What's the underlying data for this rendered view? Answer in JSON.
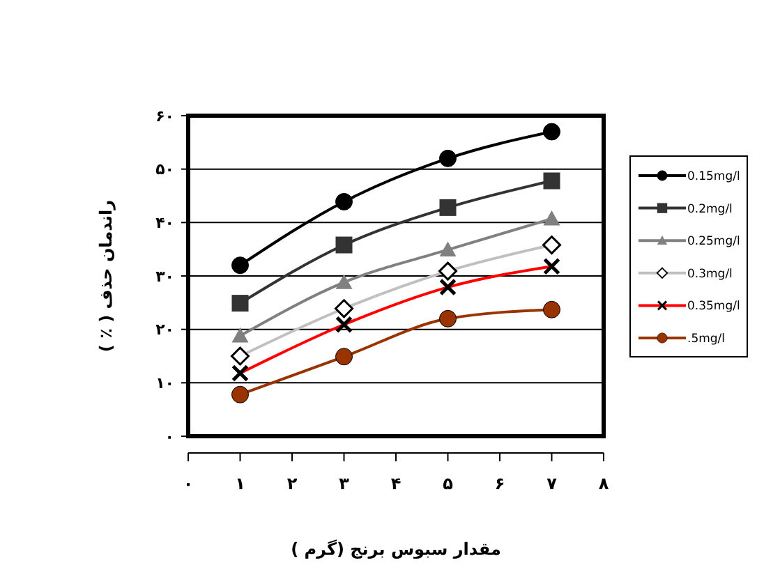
{
  "chart_data": {
    "type": "line",
    "xlabel": "مقدار سبوس برنج (گرم )",
    "ylabel": "راندمان حذف ( ٪ )",
    "x": [
      1,
      3,
      5,
      7
    ],
    "xlim": [
      0,
      8
    ],
    "xticks": [
      {
        "value": 0,
        "label": "۰"
      },
      {
        "value": 1,
        "label": "۱"
      },
      {
        "value": 2,
        "label": "۲"
      },
      {
        "value": 3,
        "label": "۳"
      },
      {
        "value": 4,
        "label": "۴"
      },
      {
        "value": 5,
        "label": "۵"
      },
      {
        "value": 6,
        "label": "۶"
      },
      {
        "value": 7,
        "label": "۷"
      },
      {
        "value": 8,
        "label": "۸"
      }
    ],
    "ylim": [
      0,
      60
    ],
    "yticks": [
      {
        "value": 0,
        "label": "۰"
      },
      {
        "value": 10,
        "label": "۱۰"
      },
      {
        "value": 20,
        "label": "۲۰"
      },
      {
        "value": 30,
        "label": "۳۰"
      },
      {
        "value": 40,
        "label": "۴۰"
      },
      {
        "value": 50,
        "label": "۵۰"
      },
      {
        "value": 60,
        "label": "۶۰"
      }
    ],
    "grid": "y",
    "legend": "right",
    "series": [
      {
        "name": "0.15mg/l",
        "color": "#000000",
        "marker": "circle",
        "values": [
          32,
          43.9,
          52,
          57
        ]
      },
      {
        "name": "0.2mg/l",
        "color": "#333333",
        "marker": "square",
        "values": [
          24.9,
          35.8,
          42.8,
          47.8
        ]
      },
      {
        "name": "0.25mg/l",
        "color": "#808080",
        "marker": "triangle",
        "values": [
          18.8,
          28.8,
          34.9,
          40.7
        ]
      },
      {
        "name": "0.3mg/l",
        "color": "#c0c0c0",
        "marker": "diamond",
        "values": [
          15,
          23.9,
          30.9,
          35.8
        ]
      },
      {
        "name": "0.35mg/l",
        "color": "#ff0000",
        "marker": "cross",
        "values": [
          11.8,
          20.9,
          27.9,
          31.8
        ]
      },
      {
        "name": ".5mg/l",
        "color": "#993300",
        "marker": "circle",
        "values": [
          7.8,
          14.9,
          22,
          23.7
        ]
      }
    ]
  }
}
